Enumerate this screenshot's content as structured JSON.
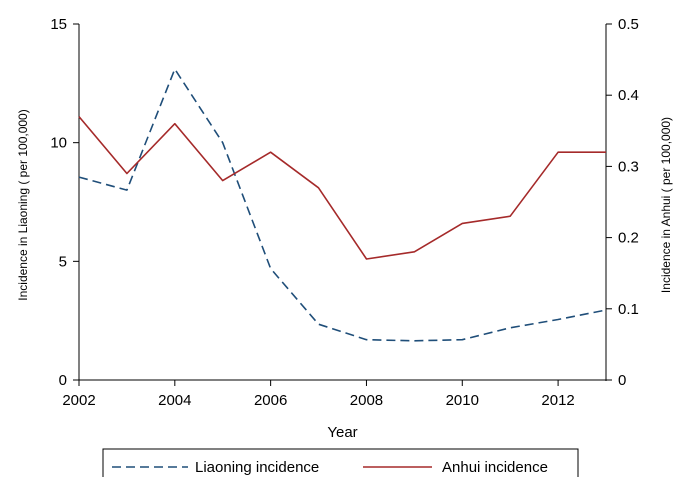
{
  "chart_data": {
    "type": "line",
    "x": [
      2002,
      2003,
      2004,
      2005,
      2006,
      2007,
      2008,
      2009,
      2010,
      2011,
      2012,
      2013
    ],
    "series": [
      {
        "name": "Liaoning incidence",
        "axis": "left",
        "color": "#1f4e79",
        "style": "dashed",
        "values": [
          8.55,
          8.0,
          13.1,
          10.0,
          4.7,
          2.35,
          1.7,
          1.65,
          1.7,
          2.2,
          2.55,
          2.95
        ]
      },
      {
        "name": "Anhui incidence",
        "axis": "right",
        "color": "#a52a2a",
        "style": "solid",
        "values": [
          0.37,
          0.29,
          0.36,
          0.28,
          0.32,
          0.27,
          0.17,
          0.18,
          0.22,
          0.23,
          0.32,
          0.32
        ]
      }
    ],
    "xlabel": "Year",
    "ylabel_left": "Incidence in Liaoning ( per 100,000)",
    "ylabel_right": "Incidence in Anhui ( per 100,000)",
    "xlim": [
      2002,
      2013
    ],
    "ylim_left": [
      0,
      15
    ],
    "ylim_right": [
      0,
      0.5
    ],
    "xticks": [
      "2002",
      "2004",
      "2006",
      "2008",
      "2010",
      "2012"
    ],
    "yticks_left": [
      "0",
      "5",
      "10",
      "15"
    ],
    "yticks_right": [
      "0",
      "0.1",
      "0.2",
      "0.3",
      "0.4",
      "0.5"
    ],
    "grid": false,
    "legend_position": "bottom"
  }
}
